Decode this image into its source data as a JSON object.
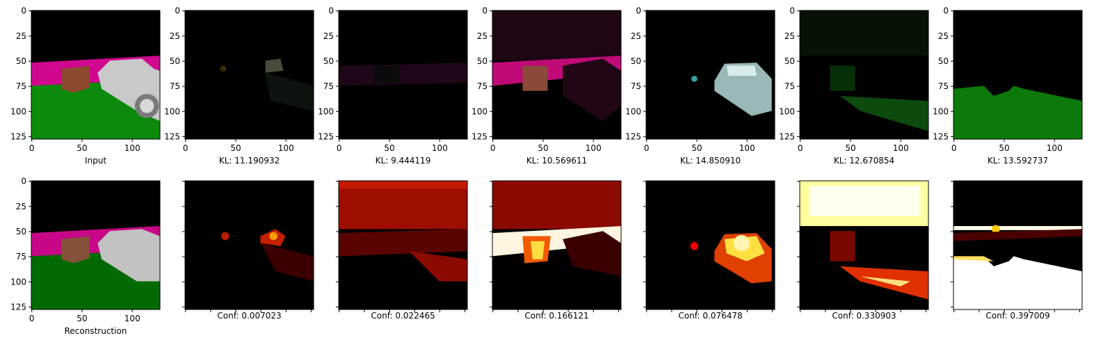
{
  "chart_data": {
    "type": "image_grid",
    "xlim": [
      -0.5,
      127.5
    ],
    "ylim": [
      127.5,
      -0.5
    ],
    "xticks": [
      0,
      50,
      100
    ],
    "yticks": [
      0,
      25,
      50,
      75,
      100,
      125
    ],
    "top_captions": [
      "Input",
      "KL: 11.190932",
      "KL: 9.444119",
      "KL: 10.569611",
      "KL: 14.850910",
      "KL: 12.670854",
      "KL: 13.592737"
    ],
    "bottom_captions": [
      "Reconstruction",
      "Conf: 0.007023",
      "Conf: 0.022465",
      "Conf: 0.166121",
      "Conf: 0.076478",
      "Conf: 0.330903",
      "Conf: 0.397009"
    ]
  }
}
